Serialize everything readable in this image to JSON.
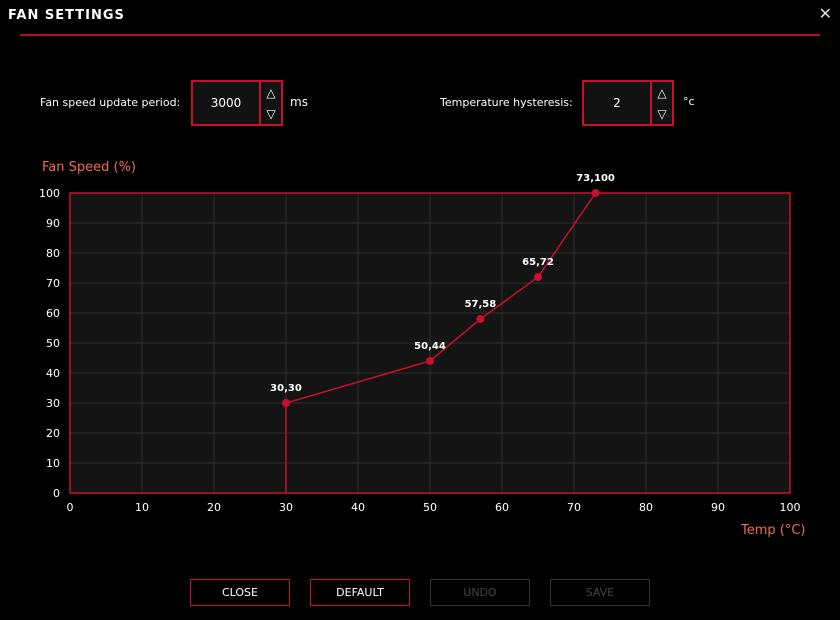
{
  "window": {
    "title": "FAN SETTINGS",
    "close_glyph": "✕"
  },
  "settings": {
    "update_period": {
      "label": "Fan speed update period:",
      "value": "3000",
      "unit": "ms"
    },
    "hysteresis": {
      "label": "Temperature hysteresis:",
      "value": "2",
      "unit": "°c"
    },
    "up_glyph": "△",
    "down_glyph": "▽"
  },
  "chart_data": {
    "type": "line",
    "ylabel": "Fan Speed (%)",
    "xlabel": "Temp (°C)",
    "xlim": [
      0,
      100
    ],
    "ylim": [
      0,
      100
    ],
    "x_ticks": [
      0,
      10,
      20,
      30,
      40,
      50,
      60,
      70,
      80,
      90,
      100
    ],
    "y_ticks": [
      0,
      10,
      20,
      30,
      40,
      50,
      60,
      70,
      80,
      90,
      100
    ],
    "grid": true,
    "points": [
      {
        "x": 30,
        "y": 30,
        "label": "30,30"
      },
      {
        "x": 50,
        "y": 44,
        "label": "50,44"
      },
      {
        "x": 57,
        "y": 58,
        "label": "57,58"
      },
      {
        "x": 65,
        "y": 72,
        "label": "65,72"
      },
      {
        "x": 73,
        "y": 100,
        "label": "73,100"
      }
    ],
    "colors": {
      "line": "#c8102e",
      "grid": "#2e2e2e",
      "plot_bg": "#141414",
      "border": "#c8102e"
    }
  },
  "buttons": {
    "close": "CLOSE",
    "default": "DEFAULT",
    "undo": "UNDO",
    "save": "SAVE"
  }
}
